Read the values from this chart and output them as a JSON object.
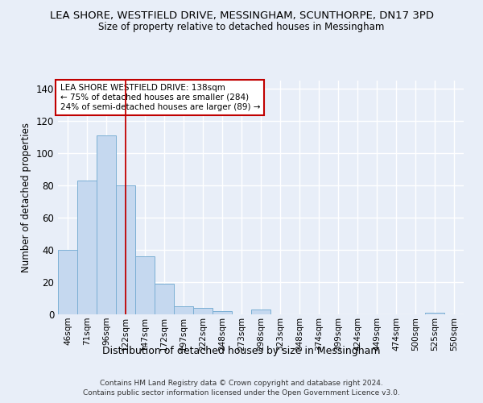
{
  "title": "LEA SHORE, WESTFIELD DRIVE, MESSINGHAM, SCUNTHORPE, DN17 3PD",
  "subtitle": "Size of property relative to detached houses in Messingham",
  "xlabel": "Distribution of detached houses by size in Messingham",
  "ylabel": "Number of detached properties",
  "categories": [
    "46sqm",
    "71sqm",
    "96sqm",
    "122sqm",
    "147sqm",
    "172sqm",
    "197sqm",
    "222sqm",
    "248sqm",
    "273sqm",
    "298sqm",
    "323sqm",
    "348sqm",
    "374sqm",
    "399sqm",
    "424sqm",
    "449sqm",
    "474sqm",
    "500sqm",
    "525sqm",
    "550sqm"
  ],
  "values": [
    40,
    83,
    111,
    80,
    36,
    19,
    5,
    4,
    2,
    0,
    3,
    0,
    0,
    0,
    0,
    0,
    0,
    0,
    0,
    1,
    0
  ],
  "bar_color": "#c5d8ef",
  "bar_edge_color": "#7bafd4",
  "vline_color": "#c00000",
  "vline_pos": 3.5,
  "annotation_title": "LEA SHORE WESTFIELD DRIVE: 138sqm",
  "annotation_line1": "← 75% of detached houses are smaller (284)",
  "annotation_line2": "24% of semi-detached houses are larger (89) →",
  "annotation_box_facecolor": "#ffffff",
  "annotation_box_edgecolor": "#c00000",
  "ylim": [
    0,
    145
  ],
  "yticks": [
    0,
    20,
    40,
    60,
    80,
    100,
    120,
    140
  ],
  "bg_color": "#e8eef8",
  "grid_color": "#ffffff",
  "footer1": "Contains HM Land Registry data © Crown copyright and database right 2024.",
  "footer2": "Contains public sector information licensed under the Open Government Licence v3.0."
}
